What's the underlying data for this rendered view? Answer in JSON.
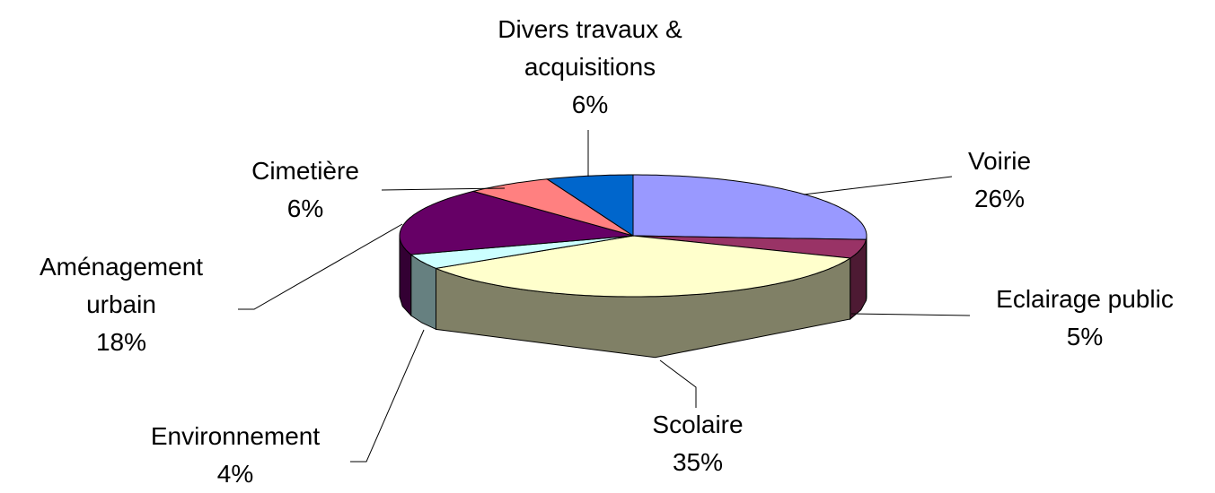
{
  "chart_data": {
    "type": "pie3d",
    "categories": [
      "Voirie",
      "Eclairage public",
      "Scolaire",
      "Environnement",
      "Aménagement urbain",
      "Cimetière",
      "Divers travaux & acquisitions"
    ],
    "values": [
      26,
      5,
      35,
      4,
      18,
      6,
      6
    ],
    "value_labels": [
      "26%",
      "5%",
      "35%",
      "4%",
      "18%",
      "6%",
      "6%"
    ],
    "colors": [
      "#9999ff",
      "#993366",
      "#ffffcc",
      "#ccffff",
      "#660066",
      "#ff8080",
      "#0066cc"
    ]
  }
}
